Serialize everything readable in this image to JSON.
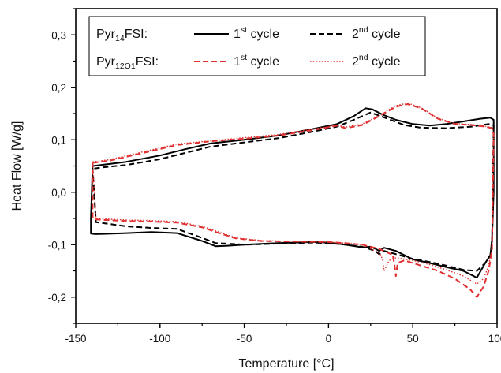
{
  "chart_data": {
    "type": "line",
    "xlabel": "Temperature [°C]",
    "ylabel": "Heat Flow [W/g]",
    "xlim": [
      -150,
      100
    ],
    "ylim": [
      -0.25,
      0.35
    ],
    "xticks": [
      -150,
      -100,
      -50,
      0,
      50,
      100
    ],
    "yticks": [
      -0.2,
      -0.1,
      0.0,
      0.1,
      0.2,
      0.3
    ],
    "xtick_labels": [
      "-150",
      "-100",
      "-50",
      "0",
      "50",
      "100"
    ],
    "ytick_labels": [
      "-0,2",
      "-0,1",
      "0,0",
      "0,1",
      "0,2",
      "0,3"
    ],
    "legend_position": "top-left",
    "legend": {
      "groups": [
        {
          "base": "Pyr",
          "sub": "14",
          "suffix": "FSI:"
        },
        {
          "base": "Pyr",
          "sub": "12O1",
          "suffix": "FSI:"
        }
      ],
      "cycles": [
        {
          "num": "1",
          "sup": "st",
          "word": " cycle"
        },
        {
          "num": "2",
          "sup": "nd",
          "word": " cycle"
        }
      ]
    },
    "series": [
      {
        "group": 0,
        "cycle": 0,
        "color": "#000000",
        "dash": "solid",
        "x": [
          -140,
          -135,
          -120,
          -100,
          -85,
          -70,
          -50,
          -30,
          -10,
          5,
          15,
          22,
          26,
          32,
          40,
          50,
          60,
          70,
          80,
          90,
          96,
          98,
          98,
          97,
          96,
          93,
          88,
          80,
          70,
          60,
          50,
          40,
          33,
          30,
          28,
          25,
          20,
          10,
          0,
          -10,
          -30,
          -50,
          -60,
          -67,
          -75,
          -90,
          -105,
          -120,
          -138,
          -141,
          -141,
          -140
        ],
        "y": [
          0.05,
          0.052,
          0.058,
          0.07,
          0.082,
          0.093,
          0.1,
          0.108,
          0.12,
          0.13,
          0.145,
          0.16,
          0.158,
          0.148,
          0.138,
          0.13,
          0.127,
          0.13,
          0.135,
          0.14,
          0.142,
          0.138,
          0.0,
          -0.09,
          -0.12,
          -0.135,
          -0.163,
          -0.15,
          -0.143,
          -0.135,
          -0.128,
          -0.112,
          -0.106,
          -0.112,
          -0.108,
          -0.104,
          -0.105,
          -0.1,
          -0.096,
          -0.095,
          -0.097,
          -0.1,
          -0.102,
          -0.103,
          -0.093,
          -0.078,
          -0.076,
          -0.078,
          -0.08,
          -0.079,
          -0.05,
          0.05
        ]
      },
      {
        "group": 0,
        "cycle": 1,
        "color": "#000000",
        "dash": "dashed",
        "x": [
          -139,
          -135,
          -120,
          -100,
          -85,
          -70,
          -50,
          -30,
          -10,
          5,
          15,
          25,
          35,
          45,
          55,
          70,
          85,
          95,
          98,
          97,
          96,
          93,
          88,
          80,
          70,
          60,
          50,
          40,
          33,
          30,
          28,
          25,
          20,
          10,
          0,
          -10,
          -30,
          -50,
          -60,
          -67,
          -75,
          -90,
          -105,
          -120,
          -138,
          -140
        ],
        "y": [
          0.045,
          0.047,
          0.052,
          0.063,
          0.075,
          0.087,
          0.095,
          0.103,
          0.115,
          0.125,
          0.138,
          0.152,
          0.14,
          0.128,
          0.123,
          0.122,
          0.125,
          0.13,
          0.128,
          -0.1,
          -0.12,
          -0.135,
          -0.15,
          -0.148,
          -0.14,
          -0.133,
          -0.127,
          -0.118,
          -0.112,
          -0.118,
          -0.113,
          -0.109,
          -0.104,
          -0.1,
          -0.097,
          -0.096,
          -0.098,
          -0.1,
          -0.098,
          -0.097,
          -0.087,
          -0.07,
          -0.068,
          -0.065,
          -0.057,
          0.045
        ]
      },
      {
        "group": 1,
        "cycle": 0,
        "color": "#e03030",
        "dash": "dashed",
        "x": [
          -140,
          -130,
          -110,
          -90,
          -70,
          -50,
          -30,
          -10,
          0,
          5,
          10,
          20,
          30,
          40,
          47,
          55,
          65,
          75,
          85,
          93,
          97,
          98,
          97,
          95,
          92,
          88,
          84,
          75,
          65,
          55,
          45,
          41,
          40,
          39,
          38,
          37,
          35,
          30,
          20,
          10,
          0,
          -20,
          -40,
          -55,
          -65,
          -75,
          -90,
          -105,
          -120,
          -138,
          -140,
          -140
        ],
        "y": [
          0.056,
          0.06,
          0.075,
          0.09,
          0.097,
          0.102,
          0.108,
          0.118,
          0.124,
          0.127,
          0.122,
          0.128,
          0.145,
          0.163,
          0.168,
          0.16,
          0.14,
          0.13,
          0.128,
          0.125,
          0.122,
          0.11,
          -0.11,
          -0.15,
          -0.18,
          -0.2,
          -0.185,
          -0.165,
          -0.15,
          -0.14,
          -0.13,
          -0.135,
          -0.16,
          -0.135,
          -0.118,
          -0.118,
          -0.115,
          -0.108,
          -0.1,
          -0.097,
          -0.095,
          -0.094,
          -0.093,
          -0.088,
          -0.078,
          -0.067,
          -0.058,
          -0.056,
          -0.055,
          -0.052,
          -0.05,
          0.056
        ]
      },
      {
        "group": 1,
        "cycle": 1,
        "color": "#e03030",
        "dash": "dotted",
        "x": [
          -140,
          -130,
          -110,
          -90,
          -70,
          -50,
          -30,
          -10,
          0,
          5,
          10,
          20,
          30,
          40,
          47,
          55,
          65,
          75,
          85,
          93,
          97,
          98,
          97,
          95,
          92,
          88,
          80,
          70,
          60,
          50,
          40,
          36,
          33,
          32,
          31,
          30,
          25,
          20,
          10,
          0,
          -20,
          -40,
          -55,
          -65,
          -75,
          -90,
          -105,
          -120,
          -138,
          -140
        ],
        "y": [
          0.058,
          0.062,
          0.077,
          0.092,
          0.098,
          0.104,
          0.11,
          0.12,
          0.125,
          0.128,
          0.124,
          0.13,
          0.146,
          0.165,
          0.17,
          0.161,
          0.141,
          0.131,
          0.129,
          0.126,
          0.123,
          0.112,
          -0.105,
          -0.14,
          -0.165,
          -0.175,
          -0.16,
          -0.148,
          -0.138,
          -0.13,
          -0.125,
          -0.13,
          -0.15,
          -0.128,
          -0.12,
          -0.115,
          -0.108,
          -0.1,
          -0.097,
          -0.095,
          -0.094,
          -0.092,
          -0.087,
          -0.076,
          -0.065,
          -0.056,
          -0.054,
          -0.053,
          -0.05,
          0.058
        ]
      }
    ]
  }
}
